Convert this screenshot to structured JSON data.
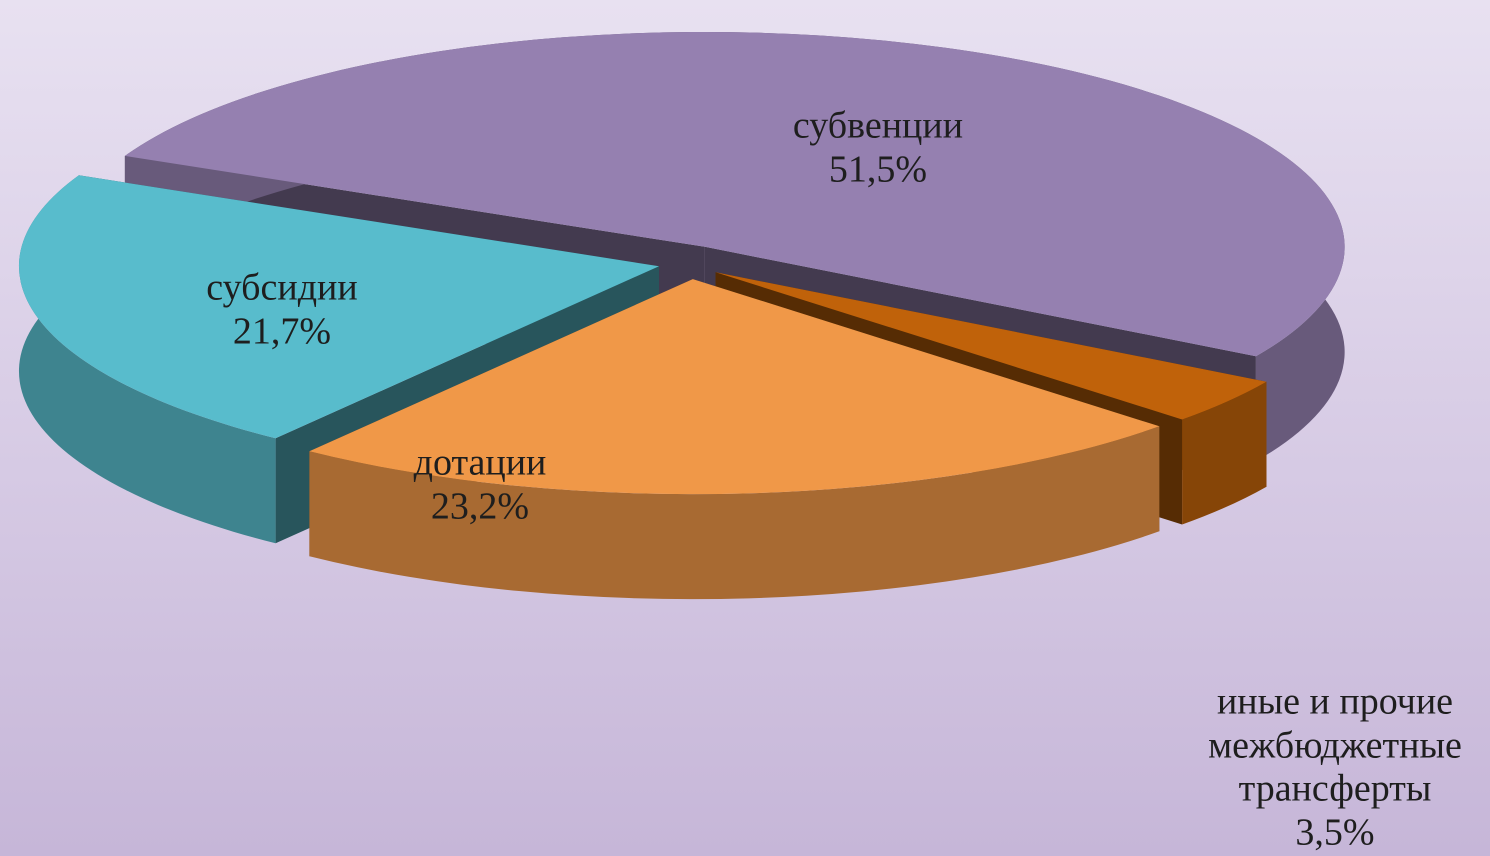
{
  "chart_data": {
    "type": "pie",
    "categories": [
      "субвенции",
      "иные и прочие межбюджетные трансферты",
      "дотации",
      "субсидии"
    ],
    "values": [
      51.5,
      3.5,
      23.2,
      21.7
    ],
    "value_labels": [
      "51,5%",
      "3,5%",
      "23,2%",
      "21,7%"
    ],
    "colors": [
      "#9580b0",
      "#c0620a",
      "#f09848",
      "#58bccc"
    ]
  }
}
